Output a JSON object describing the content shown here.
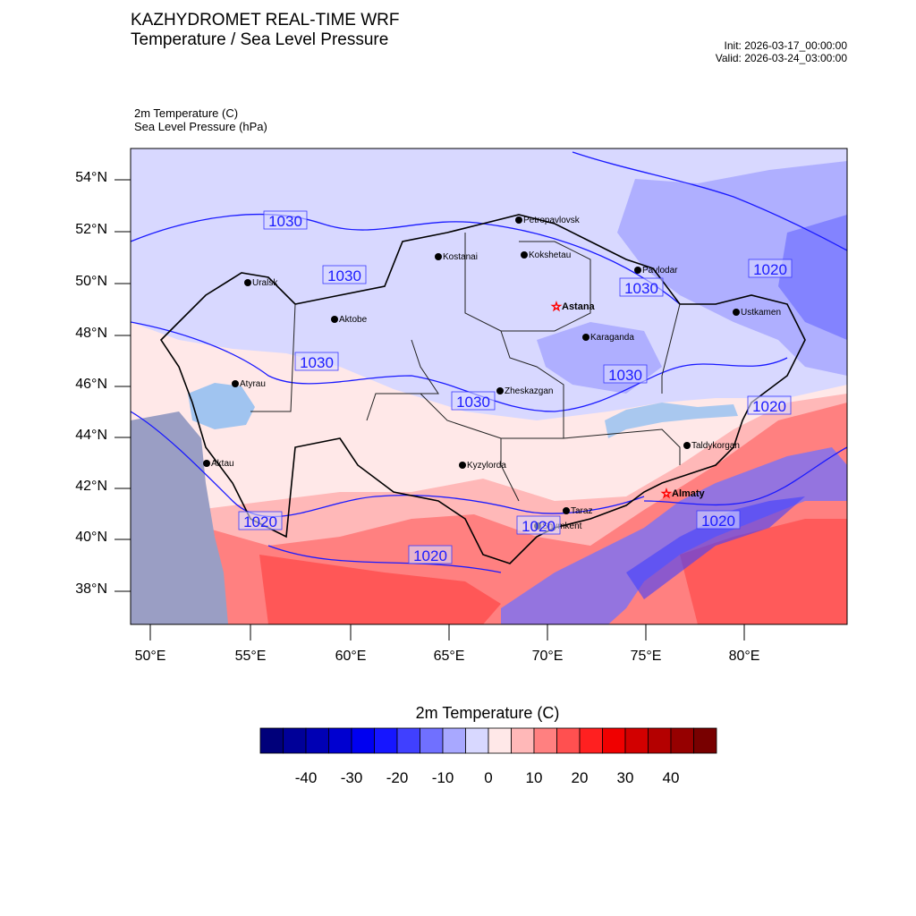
{
  "header": {
    "line1": "KAZHYDROMET REAL-TIME WRF",
    "line2": "Temperature / Sea Level Pressure",
    "init": "Init: 2026-03-17_00:00:00",
    "valid": "Valid: 2026-03-24_03:00:00"
  },
  "fields": {
    "temperature": "2m Temperature   (C)",
    "pressure": "Sea Level Pressure   (hPa)"
  },
  "map": {
    "lat_ticks": [
      "54°N",
      "52°N",
      "50°N",
      "48°N",
      "46°N",
      "44°N",
      "42°N",
      "40°N",
      "38°N"
    ],
    "lon_ticks": [
      "50°E",
      "55°E",
      "60°E",
      "65°E",
      "70°E",
      "75°E",
      "80°E"
    ],
    "cities": [
      {
        "name": "Petropavlovsk"
      },
      {
        "name": "Kostanai"
      },
      {
        "name": "Kokshetau"
      },
      {
        "name": "Uralsk"
      },
      {
        "name": "Pavlodar"
      },
      {
        "name": "Astana",
        "capital": true
      },
      {
        "name": "Aktobe"
      },
      {
        "name": "Ustkamen"
      },
      {
        "name": "Karaganda"
      },
      {
        "name": "Atyrau"
      },
      {
        "name": "Zheskazgan"
      },
      {
        "name": "Taldykorgan"
      },
      {
        "name": "Aktau"
      },
      {
        "name": "Kyzylorda"
      },
      {
        "name": "Almaty",
        "capital": true
      },
      {
        "name": "Taraz"
      },
      {
        "name": "Shymkent"
      }
    ],
    "isobar_labels": [
      "1030",
      "1030",
      "1030",
      "1030",
      "1030",
      "1030",
      "1020",
      "1020",
      "1020",
      "1020",
      "1020",
      "1020"
    ]
  },
  "colorbar": {
    "title": "2m Temperature  (C)",
    "tick_labels": [
      "-40",
      "-30",
      "-20",
      "-10",
      "0",
      "10",
      "20",
      "30",
      "40"
    ],
    "colors": [
      "#00007a",
      "#000098",
      "#0000b4",
      "#0000d0",
      "#0000f0",
      "#1616ff",
      "#4040ff",
      "#7070ff",
      "#a8a8ff",
      "#d8d8ff",
      "#ffe8e8",
      "#ffb8b8",
      "#ff8080",
      "#ff5050",
      "#ff2020",
      "#f00000",
      "#d20000",
      "#b40000",
      "#960000",
      "#780000"
    ]
  },
  "palette": {
    "isobar": "#1a1aff",
    "border": "#000000",
    "water": "#a0c4f0"
  }
}
